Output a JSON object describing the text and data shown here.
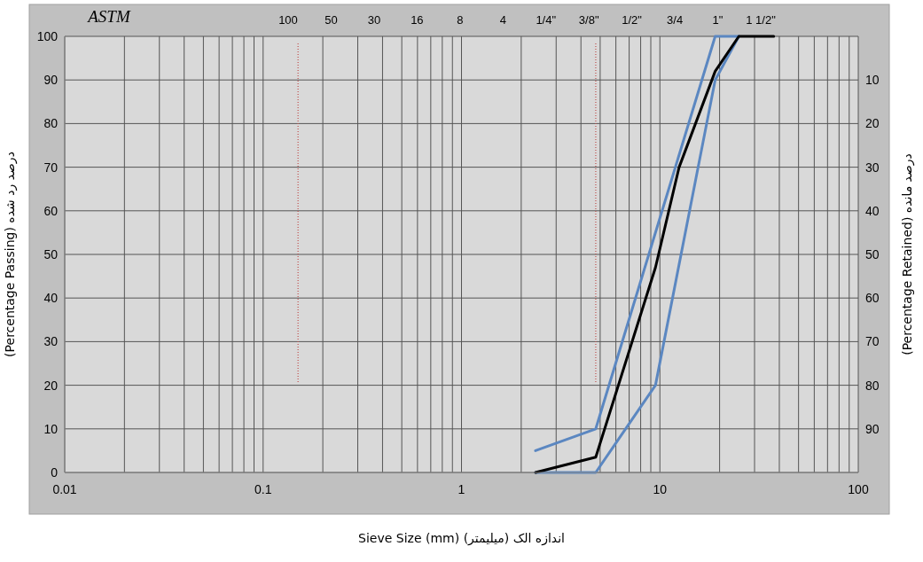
{
  "chart_data": {
    "type": "line",
    "xlabel": "Sieve Size (mm)    اندازه الک (میلیمتر)",
    "ylabel": "(Percentage Passing)      درصد رد شده",
    "y2label": "(Percentage Retained)      درصد مانده",
    "annotations": [
      "ASTM",
      "100",
      "50",
      "30",
      "16",
      "8",
      "4",
      "1/4\"",
      "3/8\"",
      "1/2\"",
      "3/4",
      "1\"",
      "1 1/2\""
    ],
    "series": [
      {
        "color": "#5b87c1",
        "x": [
          2.36,
          4.75,
          19,
          25
        ],
        "values": [
          5,
          10,
          100,
          100
        ]
      },
      {
        "color": "#5b87c1",
        "x": [
          2.36,
          4.75,
          9.5,
          19,
          25
        ],
        "values": [
          0,
          0,
          20,
          90,
          100
        ]
      },
      {
        "color": "#000000",
        "x": [
          2.36,
          4.75,
          9.5,
          12.5,
          19,
          25,
          37.5
        ],
        "values": [
          0,
          3.5,
          47,
          70,
          92,
          100,
          100
        ]
      }
    ],
    "log": "x",
    "xlim": [
      0.01,
      100
    ],
    "xticks": [
      0.01,
      0.1,
      1,
      10,
      100
    ],
    "ylim": [
      0,
      100
    ],
    "yticks": [
      0,
      10,
      20,
      30,
      40,
      50,
      60,
      70,
      80,
      90,
      100
    ],
    "y2lim": [
      100,
      0
    ],
    "y2ticks": [
      10,
      20,
      30,
      40,
      50,
      60,
      70,
      80,
      90
    ],
    "ref_lines": [
      {
        "axis": "x",
        "value": 0.15,
        "color": "#c0504d",
        "line_style": "dotted"
      },
      {
        "axis": "x",
        "value": 4.75,
        "color": "#c0504d",
        "line_style": "dotted"
      }
    ],
    "grid": true,
    "marker": "none",
    "line_style": "solid"
  }
}
